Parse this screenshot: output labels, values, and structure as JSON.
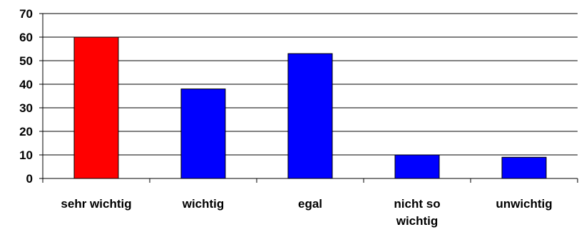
{
  "chart_data": {
    "type": "bar",
    "categories": [
      "sehr wichtig",
      "wichtig",
      "egal",
      "nicht so wichtig",
      "unwichtig"
    ],
    "category_lines": [
      [
        "sehr wichtig"
      ],
      [
        "wichtig"
      ],
      [
        "egal"
      ],
      [
        "nicht so",
        "wichtig"
      ],
      [
        "unwichtig"
      ]
    ],
    "values": [
      60,
      38,
      53,
      10,
      9
    ],
    "bar_colors": [
      "#ff0000",
      "#0000ff",
      "#0000ff",
      "#0000ff",
      "#0000ff"
    ],
    "ylim": [
      0,
      70
    ],
    "yticks": [
      0,
      10,
      20,
      30,
      40,
      50,
      60,
      70
    ],
    "grid": true,
    "title": "",
    "xlabel": "",
    "ylabel": ""
  }
}
